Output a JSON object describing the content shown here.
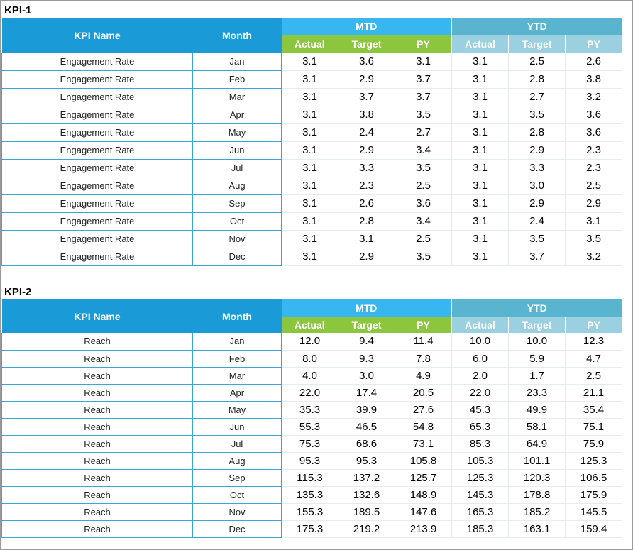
{
  "tables": [
    {
      "title": "KPI-1",
      "headers": {
        "kpi_name": "KPI Name",
        "month": "Month",
        "mtd": "MTD",
        "ytd": "YTD",
        "mtd_cols": [
          "Actual",
          "Target",
          "PY"
        ],
        "ytd_cols": [
          "Actual",
          "Target",
          "PY"
        ]
      },
      "rows": [
        {
          "name": "Engagement Rate",
          "month": "Jan",
          "mtd": [
            "3.1",
            "3.6",
            "3.1"
          ],
          "ytd": [
            "3.1",
            "2.5",
            "2.6"
          ]
        },
        {
          "name": "Engagement Rate",
          "month": "Feb",
          "mtd": [
            "3.1",
            "2.9",
            "3.7"
          ],
          "ytd": [
            "3.1",
            "2.8",
            "3.8"
          ]
        },
        {
          "name": "Engagement Rate",
          "month": "Mar",
          "mtd": [
            "3.1",
            "3.7",
            "3.7"
          ],
          "ytd": [
            "3.1",
            "2.7",
            "3.2"
          ]
        },
        {
          "name": "Engagement Rate",
          "month": "Apr",
          "mtd": [
            "3.1",
            "3.8",
            "3.5"
          ],
          "ytd": [
            "3.1",
            "3.5",
            "3.6"
          ]
        },
        {
          "name": "Engagement Rate",
          "month": "May",
          "mtd": [
            "3.1",
            "2.4",
            "2.7"
          ],
          "ytd": [
            "3.1",
            "2.8",
            "3.6"
          ]
        },
        {
          "name": "Engagement Rate",
          "month": "Jun",
          "mtd": [
            "3.1",
            "2.9",
            "3.4"
          ],
          "ytd": [
            "3.1",
            "2.9",
            "2.3"
          ]
        },
        {
          "name": "Engagement Rate",
          "month": "Jul",
          "mtd": [
            "3.1",
            "3.3",
            "3.5"
          ],
          "ytd": [
            "3.1",
            "3.3",
            "2.3"
          ]
        },
        {
          "name": "Engagement Rate",
          "month": "Aug",
          "mtd": [
            "3.1",
            "2.3",
            "2.5"
          ],
          "ytd": [
            "3.1",
            "3.0",
            "2.5"
          ]
        },
        {
          "name": "Engagement Rate",
          "month": "Sep",
          "mtd": [
            "3.1",
            "2.6",
            "3.6"
          ],
          "ytd": [
            "3.1",
            "2.9",
            "2.9"
          ]
        },
        {
          "name": "Engagement Rate",
          "month": "Oct",
          "mtd": [
            "3.1",
            "2.8",
            "3.4"
          ],
          "ytd": [
            "3.1",
            "2.4",
            "3.1"
          ]
        },
        {
          "name": "Engagement Rate",
          "month": "Nov",
          "mtd": [
            "3.1",
            "3.1",
            "2.5"
          ],
          "ytd": [
            "3.1",
            "3.5",
            "3.5"
          ]
        },
        {
          "name": "Engagement Rate",
          "month": "Dec",
          "mtd": [
            "3.1",
            "2.9",
            "3.5"
          ],
          "ytd": [
            "3.1",
            "3.7",
            "3.2"
          ]
        }
      ]
    },
    {
      "title": "KPI-2",
      "headers": {
        "kpi_name": "KPI Name",
        "month": "Month",
        "mtd": "MTD",
        "ytd": "YTD",
        "mtd_cols": [
          "Actual",
          "Target",
          "PY"
        ],
        "ytd_cols": [
          "Actual",
          "Target",
          "PY"
        ]
      },
      "rows": [
        {
          "name": "Reach",
          "month": "Jan",
          "mtd": [
            "12.0",
            "9.4",
            "11.4"
          ],
          "ytd": [
            "10.0",
            "10.0",
            "12.3"
          ]
        },
        {
          "name": "Reach",
          "month": "Feb",
          "mtd": [
            "8.0",
            "9.3",
            "7.8"
          ],
          "ytd": [
            "6.0",
            "5.9",
            "4.7"
          ]
        },
        {
          "name": "Reach",
          "month": "Mar",
          "mtd": [
            "4.0",
            "3.0",
            "4.9"
          ],
          "ytd": [
            "2.0",
            "1.7",
            "2.5"
          ]
        },
        {
          "name": "Reach",
          "month": "Apr",
          "mtd": [
            "22.0",
            "17.4",
            "20.5"
          ],
          "ytd": [
            "22.0",
            "23.3",
            "21.1"
          ]
        },
        {
          "name": "Reach",
          "month": "May",
          "mtd": [
            "35.3",
            "39.9",
            "27.6"
          ],
          "ytd": [
            "45.3",
            "49.9",
            "35.4"
          ]
        },
        {
          "name": "Reach",
          "month": "Jun",
          "mtd": [
            "55.3",
            "46.5",
            "54.8"
          ],
          "ytd": [
            "65.3",
            "58.1",
            "75.1"
          ]
        },
        {
          "name": "Reach",
          "month": "Jul",
          "mtd": [
            "75.3",
            "68.6",
            "73.1"
          ],
          "ytd": [
            "85.3",
            "64.9",
            "75.9"
          ]
        },
        {
          "name": "Reach",
          "month": "Aug",
          "mtd": [
            "95.3",
            "95.3",
            "105.8"
          ],
          "ytd": [
            "105.3",
            "101.1",
            "125.3"
          ]
        },
        {
          "name": "Reach",
          "month": "Sep",
          "mtd": [
            "115.3",
            "137.2",
            "125.7"
          ],
          "ytd": [
            "125.3",
            "120.3",
            "106.5"
          ]
        },
        {
          "name": "Reach",
          "month": "Oct",
          "mtd": [
            "135.3",
            "132.6",
            "148.9"
          ],
          "ytd": [
            "145.3",
            "178.8",
            "175.9"
          ]
        },
        {
          "name": "Reach",
          "month": "Nov",
          "mtd": [
            "155.3",
            "189.5",
            "147.6"
          ],
          "ytd": [
            "165.3",
            "185.2",
            "145.5"
          ]
        },
        {
          "name": "Reach",
          "month": "Dec",
          "mtd": [
            "175.3",
            "219.2",
            "213.9"
          ],
          "ytd": [
            "185.3",
            "163.1",
            "159.4"
          ]
        }
      ]
    }
  ]
}
